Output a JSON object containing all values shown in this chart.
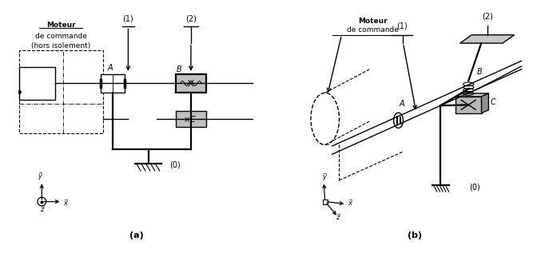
{
  "bg_color": "#ffffff",
  "moteur_text_2d_1": "Moteur",
  "moteur_text_2d_2": "de commande",
  "moteur_text_2d_3": "(hors isolement)",
  "moteur_text_3d_1": "Moteur",
  "moteur_text_3d_2": "de commande",
  "label_a": "A",
  "label_b": "B",
  "label_c": "C",
  "label_0": "(0)",
  "label_1": "(1)",
  "label_2": "(2)",
  "sub_a": "(a)",
  "sub_b": "(b)"
}
